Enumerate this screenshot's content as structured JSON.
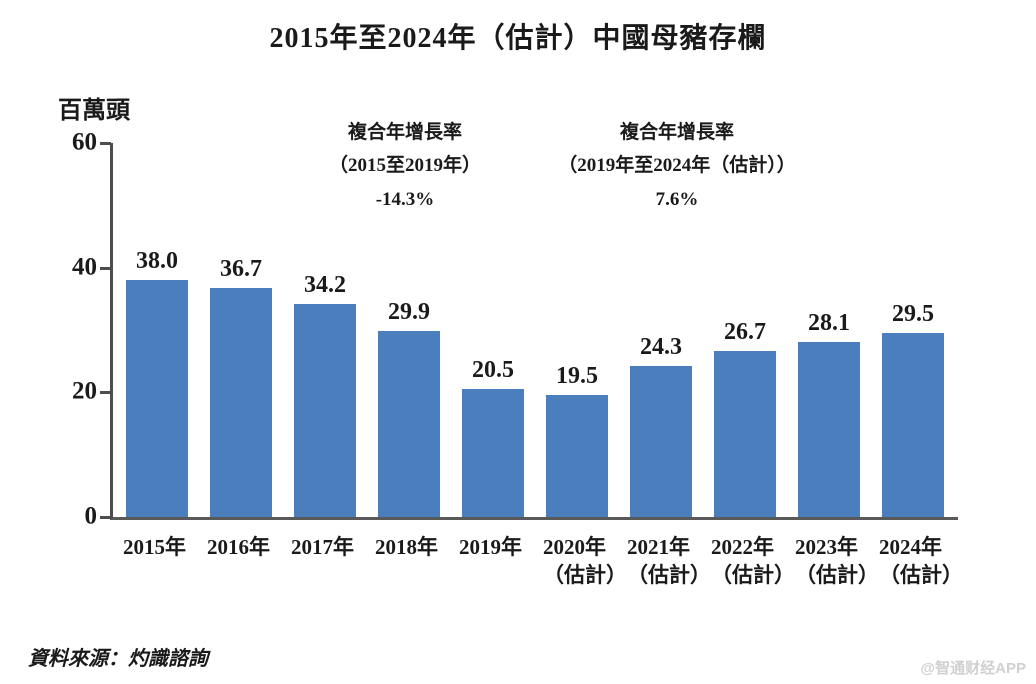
{
  "page": {
    "source": "資料來源：灼識諮詢",
    "watermark": "@智通财经APP"
  },
  "chart_data": {
    "type": "bar",
    "title": "2015年至2024年（估計）中國母豬存欄",
    "unit_label": "百萬頭",
    "ylabel": "百萬頭",
    "xlabel": "",
    "categories": [
      "2015年",
      "2016年",
      "2017年",
      "2018年",
      "2019年",
      "2020年（估計）",
      "2021年（估計）",
      "2022年（估計）",
      "2023年（估計）",
      "2024年（估計）"
    ],
    "category_lines": [
      [
        "2015年"
      ],
      [
        "2016年"
      ],
      [
        "2017年"
      ],
      [
        "2018年"
      ],
      [
        "2019年"
      ],
      [
        "2020年",
        "（估計）"
      ],
      [
        "2021年",
        "（估計）"
      ],
      [
        "2022年",
        "（估計）"
      ],
      [
        "2023年",
        "（估計）"
      ],
      [
        "2024年",
        "（估計）"
      ]
    ],
    "values": [
      38.0,
      36.7,
      34.2,
      29.9,
      20.5,
      19.5,
      24.3,
      26.7,
      28.1,
      29.5
    ],
    "ylim": [
      0,
      60
    ],
    "yticks": [
      0,
      20,
      40,
      60
    ],
    "grid": false,
    "legend_position": "none",
    "bar_color": "#4b7ebc",
    "axis_color": "#4d4d4d",
    "annotations": [
      {
        "lines": [
          "複合年增長率",
          "（2015至2019年）",
          "-14.3%"
        ]
      },
      {
        "lines": [
          "複合年增長率",
          "（2019年至2024年（估計））",
          "7.6%"
        ]
      }
    ],
    "source": "資料來源：灼識諮詢"
  }
}
